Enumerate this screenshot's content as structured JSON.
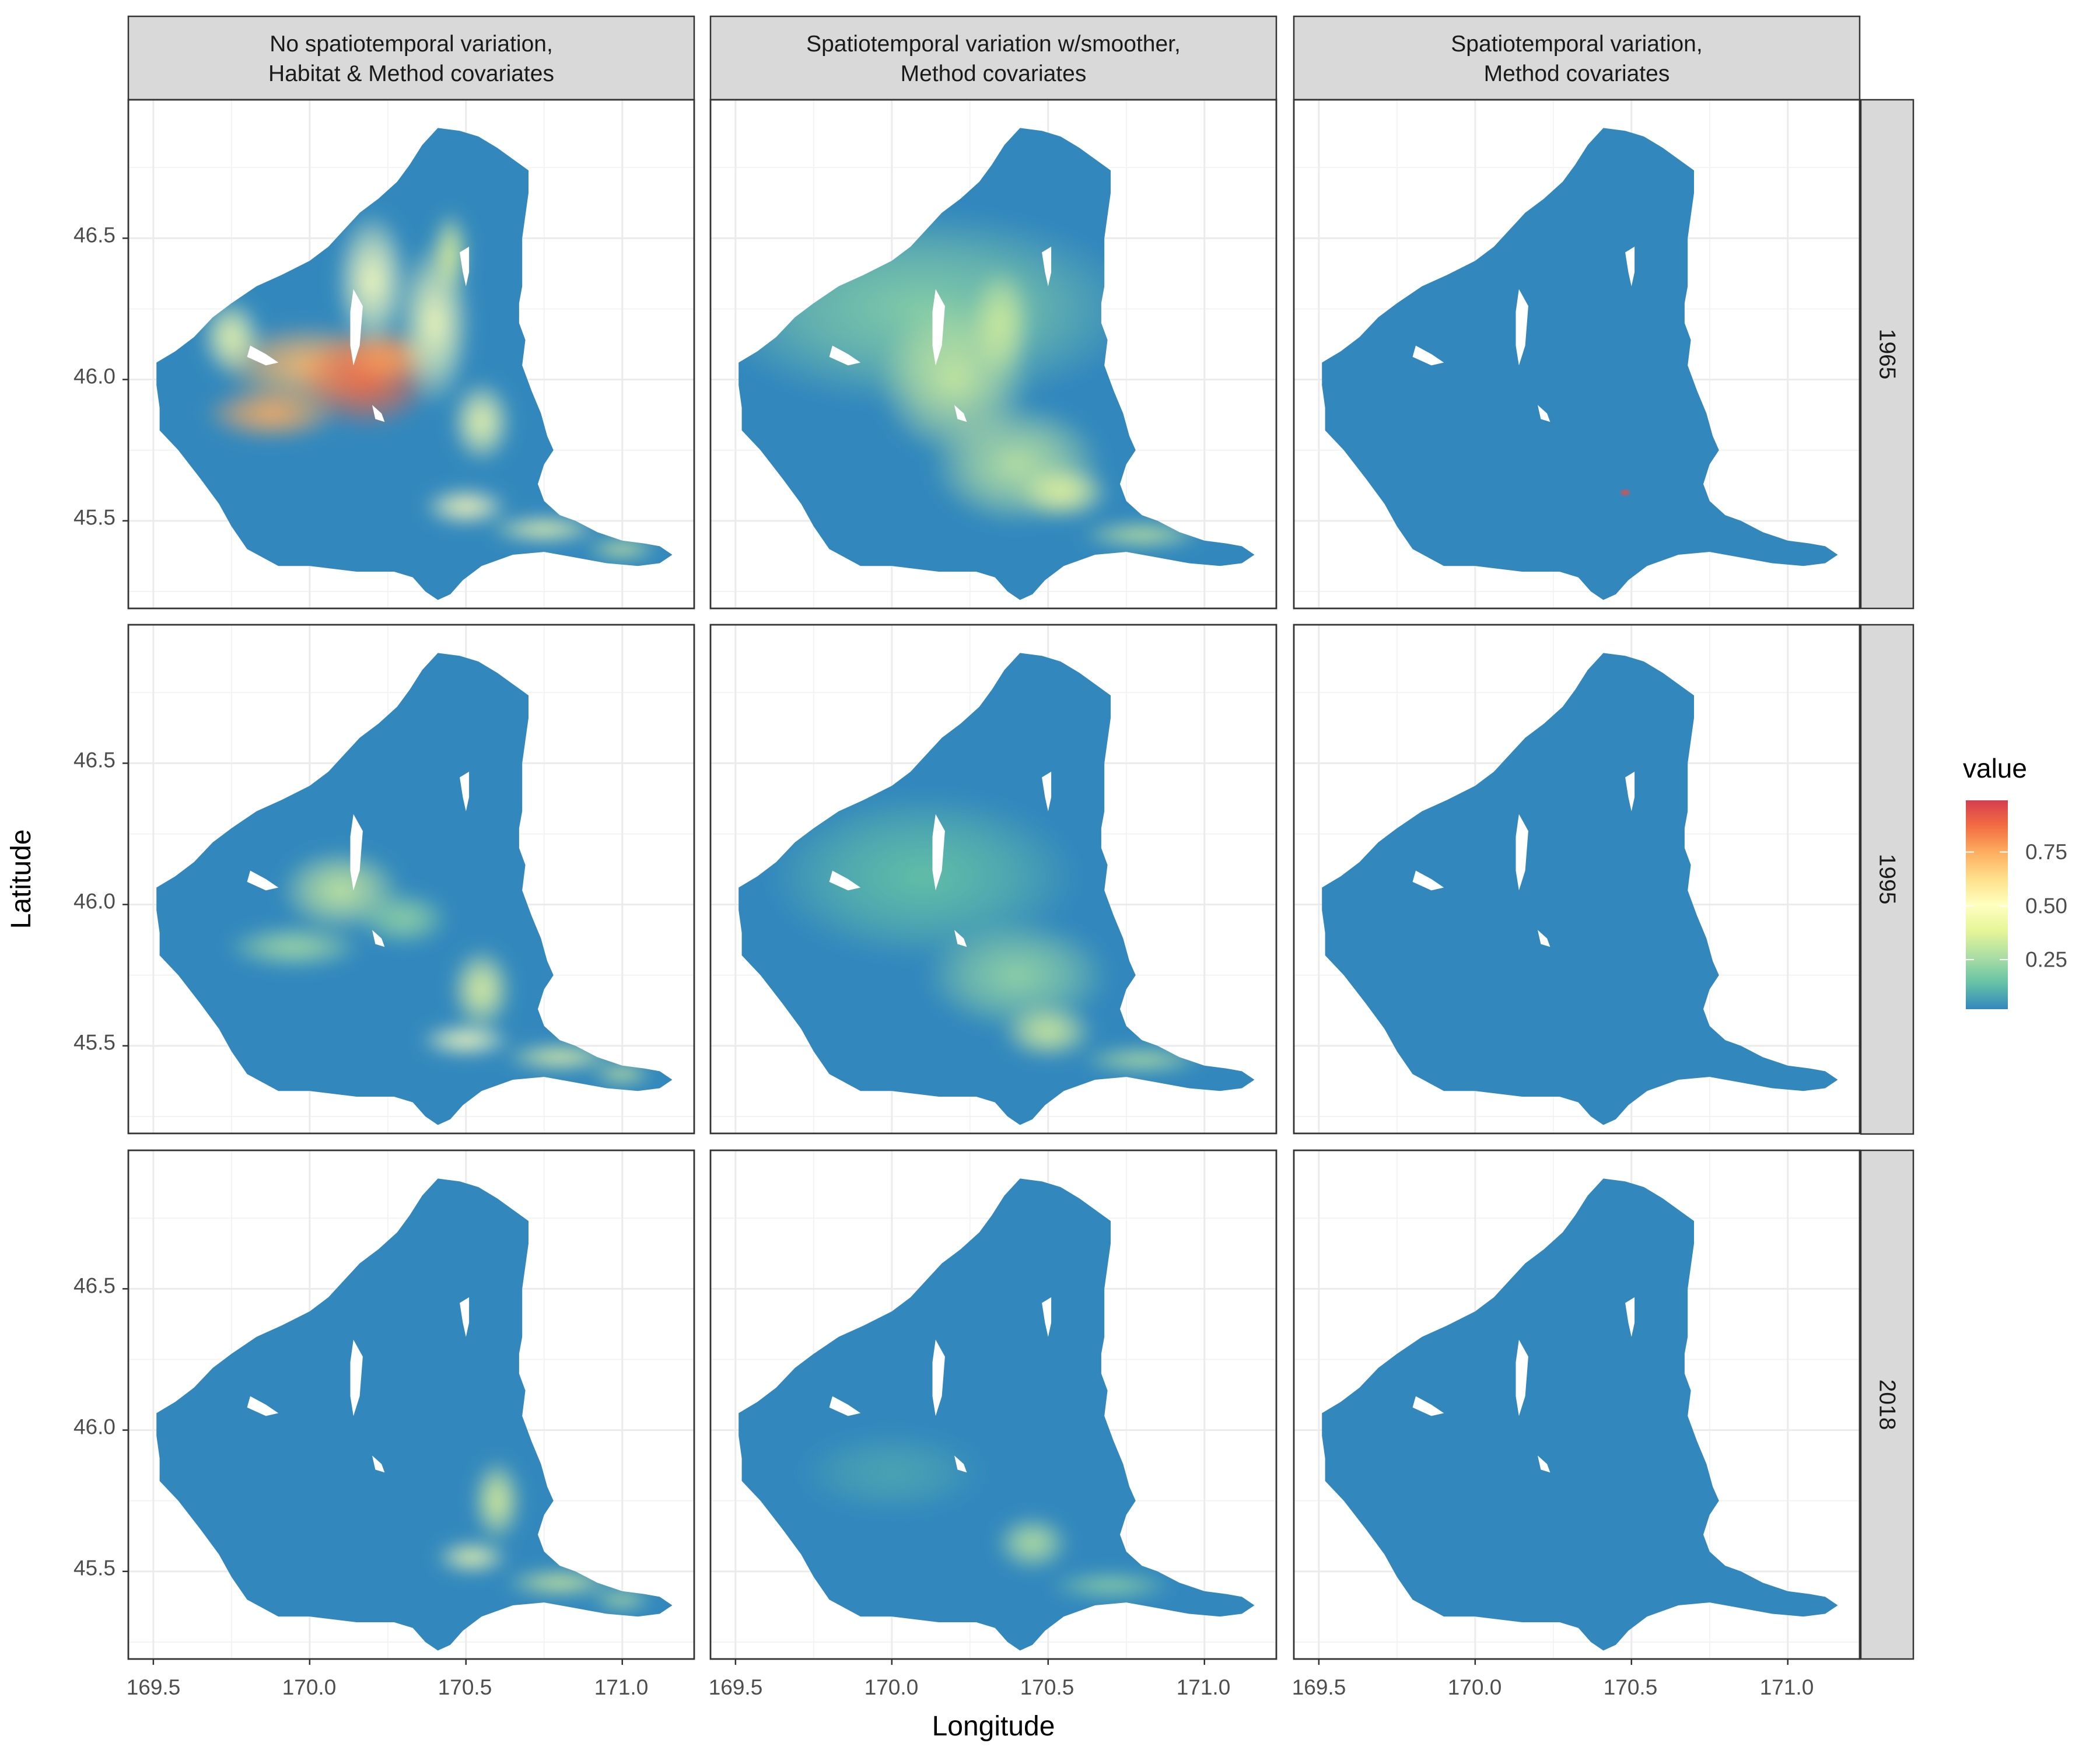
{
  "chart_data": {
    "type": "heatmap",
    "layout": "facet-grid",
    "columns": [
      {
        "line1": "No spatiotemporal variation,",
        "line2": "Habitat & Method covariates"
      },
      {
        "line1": "Spatiotemporal variation w/smoother,",
        "line2": "Method covariates"
      },
      {
        "line1": "Spatiotemporal variation,",
        "line2": "Method covariates"
      }
    ],
    "rows": [
      "1965",
      "1995",
      "2018"
    ],
    "xlabel": "Longitude",
    "ylabel": "Latitude",
    "x_ticks": [
      "169.5",
      "170.0",
      "170.5",
      "171.0"
    ],
    "x_tick_values": [
      169.5,
      170.0,
      170.5,
      171.0
    ],
    "y_ticks": [
      "45.5",
      "46.0",
      "46.5"
    ],
    "y_tick_values": [
      45.5,
      46.0,
      46.5
    ],
    "xlim": [
      169.42,
      171.23
    ],
    "ylim": [
      45.19,
      46.99
    ],
    "grid": true,
    "legend": {
      "title": "value",
      "position": "right",
      "ticks": [
        "0.25",
        "0.50",
        "0.75"
      ],
      "tick_values": [
        0.25,
        0.5,
        0.75
      ],
      "range": [
        0.02,
        0.99
      ],
      "colors": [
        "#3288bd",
        "#66c2a5",
        "#abdda4",
        "#e6f598",
        "#ffffbf",
        "#fee08b",
        "#fdae61",
        "#f46d43",
        "#d53e4f"
      ]
    },
    "region_outline_lonlat": [
      [
        170.41,
        46.89
      ],
      [
        170.48,
        46.88
      ],
      [
        170.54,
        46.86
      ],
      [
        170.6,
        46.82
      ],
      [
        170.65,
        46.78
      ],
      [
        170.7,
        46.74
      ],
      [
        170.7,
        46.66
      ],
      [
        170.69,
        46.58
      ],
      [
        170.68,
        46.5
      ],
      [
        170.68,
        46.42
      ],
      [
        170.68,
        46.33
      ],
      [
        170.67,
        46.27
      ],
      [
        170.67,
        46.2
      ],
      [
        170.69,
        46.14
      ],
      [
        170.68,
        46.05
      ],
      [
        170.71,
        45.96
      ],
      [
        170.74,
        45.88
      ],
      [
        170.76,
        45.8
      ],
      [
        170.78,
        45.75
      ],
      [
        170.75,
        45.7
      ],
      [
        170.73,
        45.63
      ],
      [
        170.75,
        45.57
      ],
      [
        170.8,
        45.52
      ],
      [
        170.85,
        45.5
      ],
      [
        170.92,
        45.46
      ],
      [
        171.0,
        45.43
      ],
      [
        171.07,
        45.42
      ],
      [
        171.12,
        45.41
      ],
      [
        171.16,
        45.38
      ],
      [
        171.12,
        45.35
      ],
      [
        171.05,
        45.34
      ],
      [
        170.95,
        45.35
      ],
      [
        170.85,
        45.37
      ],
      [
        170.75,
        45.39
      ],
      [
        170.65,
        45.38
      ],
      [
        170.55,
        45.34
      ],
      [
        170.49,
        45.29
      ],
      [
        170.45,
        45.24
      ],
      [
        170.41,
        45.22
      ],
      [
        170.37,
        45.25
      ],
      [
        170.33,
        45.3
      ],
      [
        170.27,
        45.32
      ],
      [
        170.15,
        45.32
      ],
      [
        170.0,
        45.34
      ],
      [
        169.9,
        45.34
      ],
      [
        169.8,
        45.4
      ],
      [
        169.75,
        45.48
      ],
      [
        169.71,
        45.56
      ],
      [
        169.65,
        45.65
      ],
      [
        169.58,
        45.75
      ],
      [
        169.52,
        45.82
      ],
      [
        169.52,
        45.9
      ],
      [
        169.51,
        45.98
      ],
      [
        169.51,
        46.06
      ],
      [
        169.57,
        46.1
      ],
      [
        169.63,
        46.15
      ],
      [
        169.69,
        46.22
      ],
      [
        169.75,
        46.27
      ],
      [
        169.83,
        46.33
      ],
      [
        169.91,
        46.37
      ],
      [
        170.0,
        46.42
      ],
      [
        170.06,
        46.47
      ],
      [
        170.11,
        46.53
      ],
      [
        170.16,
        46.59
      ],
      [
        170.22,
        46.64
      ],
      [
        170.28,
        46.7
      ],
      [
        170.32,
        46.76
      ],
      [
        170.36,
        46.83
      ]
    ],
    "lakes_lonlat": [
      [
        [
          170.14,
          46.32
        ],
        [
          170.13,
          46.24
        ],
        [
          170.13,
          46.12
        ],
        [
          170.14,
          46.05
        ],
        [
          170.16,
          46.12
        ],
        [
          170.17,
          46.26
        ]
      ],
      [
        [
          170.48,
          46.45
        ],
        [
          170.49,
          46.38
        ],
        [
          170.5,
          46.33
        ],
        [
          170.51,
          46.38
        ],
        [
          170.51,
          46.47
        ]
      ],
      [
        [
          169.81,
          46.12
        ],
        [
          169.86,
          46.09
        ],
        [
          169.9,
          46.06
        ],
        [
          169.86,
          46.05
        ],
        [
          169.8,
          46.08
        ]
      ],
      [
        [
          170.2,
          45.91
        ],
        [
          170.23,
          45.88
        ],
        [
          170.24,
          45.85
        ],
        [
          170.21,
          45.86
        ]
      ]
    ],
    "hotspot_blobs_lonlat": [
      [
        [
          {
            "lon": 170.0,
            "lat": 46.05,
            "sx": 0.3,
            "sy": 0.15,
            "v": 0.72
          },
          {
            "lon": 170.18,
            "lat": 46.0,
            "sx": 0.22,
            "sy": 0.18,
            "v": 0.88
          },
          {
            "lon": 170.25,
            "lat": 46.08,
            "sx": 0.14,
            "sy": 0.1,
            "v": 0.78
          },
          {
            "lon": 169.88,
            "lat": 45.88,
            "sx": 0.22,
            "sy": 0.1,
            "v": 0.75
          },
          {
            "lon": 169.75,
            "lat": 46.15,
            "sx": 0.1,
            "sy": 0.14,
            "v": 0.45
          },
          {
            "lon": 170.4,
            "lat": 46.2,
            "sx": 0.12,
            "sy": 0.3,
            "v": 0.48
          },
          {
            "lon": 170.2,
            "lat": 46.35,
            "sx": 0.12,
            "sy": 0.25,
            "v": 0.5
          },
          {
            "lon": 170.45,
            "lat": 46.45,
            "sx": 0.06,
            "sy": 0.15,
            "v": 0.38
          },
          {
            "lon": 170.55,
            "lat": 45.85,
            "sx": 0.1,
            "sy": 0.15,
            "v": 0.45
          },
          {
            "lon": 170.5,
            "lat": 45.55,
            "sx": 0.14,
            "sy": 0.07,
            "v": 0.52
          },
          {
            "lon": 170.75,
            "lat": 45.47,
            "sx": 0.18,
            "sy": 0.05,
            "v": 0.45
          },
          {
            "lon": 171.0,
            "lat": 45.4,
            "sx": 0.12,
            "sy": 0.04,
            "v": 0.35
          }
        ],
        [
          {
            "lon": 170.1,
            "lat": 46.25,
            "sx": 0.7,
            "sy": 0.35,
            "v": 0.2
          },
          {
            "lon": 170.2,
            "lat": 46.0,
            "sx": 0.25,
            "sy": 0.28,
            "v": 0.32
          },
          {
            "lon": 170.4,
            "lat": 45.7,
            "sx": 0.28,
            "sy": 0.22,
            "v": 0.3
          },
          {
            "lon": 170.55,
            "lat": 45.6,
            "sx": 0.15,
            "sy": 0.1,
            "v": 0.4
          },
          {
            "lon": 170.8,
            "lat": 45.45,
            "sx": 0.2,
            "sy": 0.05,
            "v": 0.32
          },
          {
            "lon": 170.35,
            "lat": 46.2,
            "sx": 0.1,
            "sy": 0.2,
            "v": 0.34
          }
        ],
        [
          {
            "lon": 170.48,
            "lat": 45.6,
            "sx": 0.02,
            "sy": 0.015,
            "v": 0.95
          }
        ]
      ],
      [
        [
          {
            "lon": 170.1,
            "lat": 46.05,
            "sx": 0.2,
            "sy": 0.15,
            "v": 0.32
          },
          {
            "lon": 169.95,
            "lat": 45.85,
            "sx": 0.22,
            "sy": 0.08,
            "v": 0.25
          },
          {
            "lon": 170.55,
            "lat": 45.7,
            "sx": 0.1,
            "sy": 0.15,
            "v": 0.4
          },
          {
            "lon": 170.5,
            "lat": 45.52,
            "sx": 0.15,
            "sy": 0.06,
            "v": 0.5
          },
          {
            "lon": 170.8,
            "lat": 45.46,
            "sx": 0.18,
            "sy": 0.05,
            "v": 0.42
          },
          {
            "lon": 171.0,
            "lat": 45.4,
            "sx": 0.1,
            "sy": 0.04,
            "v": 0.35
          },
          {
            "lon": 170.3,
            "lat": 45.95,
            "sx": 0.15,
            "sy": 0.1,
            "v": 0.22
          }
        ],
        [
          {
            "lon": 170.1,
            "lat": 46.1,
            "sx": 0.5,
            "sy": 0.3,
            "v": 0.14
          },
          {
            "lon": 170.4,
            "lat": 45.75,
            "sx": 0.3,
            "sy": 0.2,
            "v": 0.22
          },
          {
            "lon": 170.5,
            "lat": 45.55,
            "sx": 0.15,
            "sy": 0.1,
            "v": 0.35
          },
          {
            "lon": 170.8,
            "lat": 45.45,
            "sx": 0.2,
            "sy": 0.05,
            "v": 0.28
          }
        ],
        []
      ],
      [
        [
          {
            "lon": 170.6,
            "lat": 45.75,
            "sx": 0.08,
            "sy": 0.15,
            "v": 0.38
          },
          {
            "lon": 170.52,
            "lat": 45.55,
            "sx": 0.12,
            "sy": 0.06,
            "v": 0.45
          },
          {
            "lon": 170.8,
            "lat": 45.46,
            "sx": 0.18,
            "sy": 0.05,
            "v": 0.35
          },
          {
            "lon": 171.0,
            "lat": 45.4,
            "sx": 0.1,
            "sy": 0.04,
            "v": 0.3
          }
        ],
        [
          {
            "lon": 170.45,
            "lat": 45.6,
            "sx": 0.12,
            "sy": 0.1,
            "v": 0.3
          },
          {
            "lon": 170.7,
            "lat": 45.45,
            "sx": 0.2,
            "sy": 0.05,
            "v": 0.22
          },
          {
            "lon": 170.0,
            "lat": 45.85,
            "sx": 0.3,
            "sy": 0.15,
            "v": 0.08
          }
        ],
        []
      ]
    ]
  }
}
